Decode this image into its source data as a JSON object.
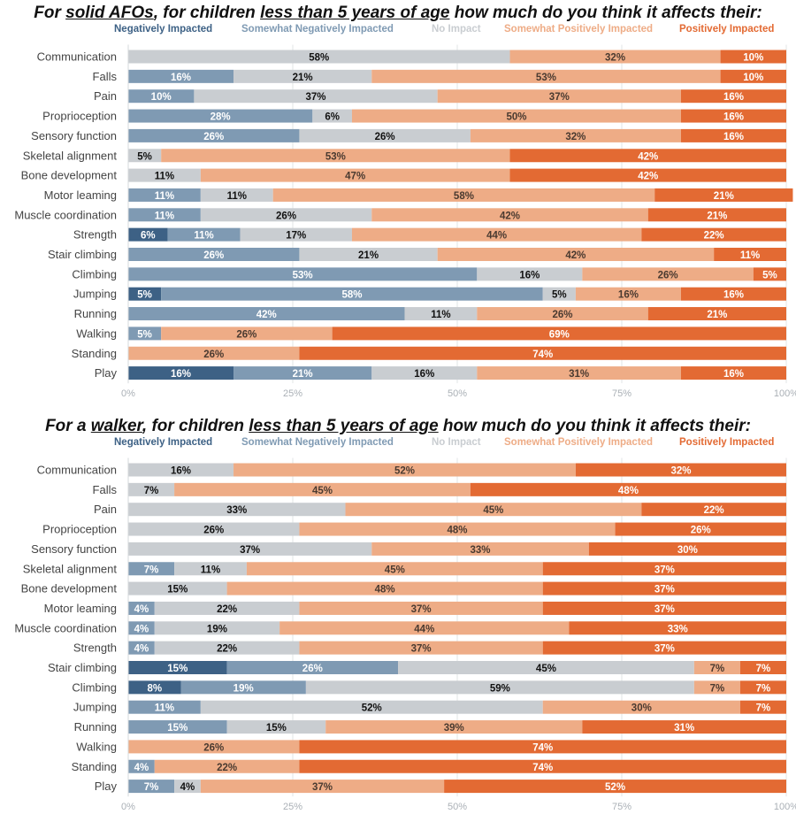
{
  "colors": {
    "Negatively Impacted": "#3d6185",
    "Somewhat Negatively Impacted": "#7f9ab3",
    "No Impact": "#c9cdd1",
    "Somewhat Positively Impacted": "#eeac86",
    "Positively Impacted": "#e36a33"
  },
  "chart_data": [
    {
      "type": "bar",
      "orientation": "horizontal",
      "stacked": true,
      "title_parts": [
        {
          "text": "For ",
          "u": false
        },
        {
          "text": "solid AFOs",
          "u": true
        },
        {
          "text": ", for children ",
          "u": false
        },
        {
          "text": "less than 5 years of age",
          "u": true
        },
        {
          "text": " how much do you think it affects their:",
          "u": false
        }
      ],
      "title": "For solid AFOs, for children less than 5 years of age how much do you think it affects their:",
      "legend": [
        "Negatively Impacted",
        "Somewhat Negatively Impacted",
        "No Impact",
        "Somewhat Positively Impacted",
        "Positively Impacted"
      ],
      "legend_position": "top-right",
      "xlabel": "",
      "ylabel": "",
      "xlim": [
        0,
        100
      ],
      "x_ticks": [
        "0%",
        "25%",
        "50%",
        "75%",
        "100%"
      ],
      "grid": true,
      "categories": [
        "Communication",
        "Falls",
        "Pain",
        "Proprioception",
        "Sensory function",
        "Skeletal alignment",
        "Bone development",
        "Motor leaming",
        "Muscle coordination",
        "Strength",
        "Stair climbing",
        "Climbing",
        "Jumping",
        "Running",
        "Walking",
        "Standing",
        "Play"
      ],
      "series": [
        {
          "name": "Negatively Impacted",
          "values": [
            0,
            0,
            0,
            0,
            0,
            0,
            0,
            0,
            0,
            6,
            0,
            0,
            5,
            0,
            0,
            0,
            16
          ]
        },
        {
          "name": "Somewhat Negatively Impacted",
          "values": [
            0,
            16,
            10,
            28,
            26,
            0,
            0,
            11,
            11,
            11,
            26,
            53,
            58,
            42,
            5,
            0,
            21
          ]
        },
        {
          "name": "No Impact",
          "values": [
            58,
            21,
            37,
            6,
            26,
            5,
            11,
            11,
            26,
            17,
            21,
            16,
            5,
            11,
            0,
            0,
            16
          ]
        },
        {
          "name": "Somewhat Positively Impacted",
          "values": [
            32,
            53,
            37,
            50,
            32,
            53,
            47,
            58,
            42,
            44,
            42,
            26,
            16,
            26,
            26,
            26,
            31
          ]
        },
        {
          "name": "Positively Impacted",
          "values": [
            10,
            10,
            16,
            16,
            16,
            42,
            42,
            21,
            21,
            22,
            11,
            5,
            16,
            21,
            69,
            74,
            16
          ]
        }
      ]
    },
    {
      "type": "bar",
      "orientation": "horizontal",
      "stacked": true,
      "title_parts": [
        {
          "text": "For a ",
          "u": false
        },
        {
          "text": "walker",
          "u": true
        },
        {
          "text": ", for children ",
          "u": false
        },
        {
          "text": "less than 5 years of age",
          "u": true
        },
        {
          "text": " how much do you think it affects their:",
          "u": false
        }
      ],
      "title": "For a walker, for children less than 5 years of age how much do you think it affects their:",
      "legend": [
        "Negatively Impacted",
        "Somewhat Negatively Impacted",
        "No Impact",
        "Somewhat Positively Impacted",
        "Positively Impacted"
      ],
      "legend_position": "top-right",
      "xlabel": "",
      "ylabel": "",
      "xlim": [
        0,
        100
      ],
      "x_ticks": [
        "0%",
        "25%",
        "50%",
        "75%",
        "100%"
      ],
      "grid": true,
      "categories": [
        "Communication",
        "Falls",
        "Pain",
        "Proprioception",
        "Sensory function",
        "Skeletal alignment",
        "Bone development",
        "Motor leaming",
        "Muscle coordination",
        "Strength",
        "Stair climbing",
        "Climbing",
        "Jumping",
        "Running",
        "Walking",
        "Standing",
        "Play"
      ],
      "series": [
        {
          "name": "Negatively Impacted",
          "values": [
            0,
            0,
            0,
            0,
            0,
            0,
            0,
            0,
            0,
            0,
            15,
            8,
            0,
            0,
            0,
            0,
            0
          ]
        },
        {
          "name": "Somewhat Negatively Impacted",
          "values": [
            0,
            0,
            0,
            0,
            0,
            7,
            0,
            4,
            4,
            4,
            26,
            19,
            11,
            15,
            0,
            4,
            7
          ]
        },
        {
          "name": "No Impact",
          "values": [
            16,
            7,
            33,
            26,
            37,
            11,
            15,
            22,
            19,
            22,
            45,
            59,
            52,
            15,
            0,
            0,
            4
          ]
        },
        {
          "name": "Somewhat Positively Impacted",
          "values": [
            52,
            45,
            45,
            48,
            33,
            45,
            48,
            37,
            44,
            37,
            7,
            7,
            30,
            39,
            26,
            22,
            37
          ]
        },
        {
          "name": "Positively Impacted",
          "values": [
            32,
            48,
            22,
            26,
            30,
            37,
            37,
            37,
            33,
            37,
            7,
            7,
            7,
            31,
            74,
            74,
            52
          ]
        }
      ]
    }
  ]
}
